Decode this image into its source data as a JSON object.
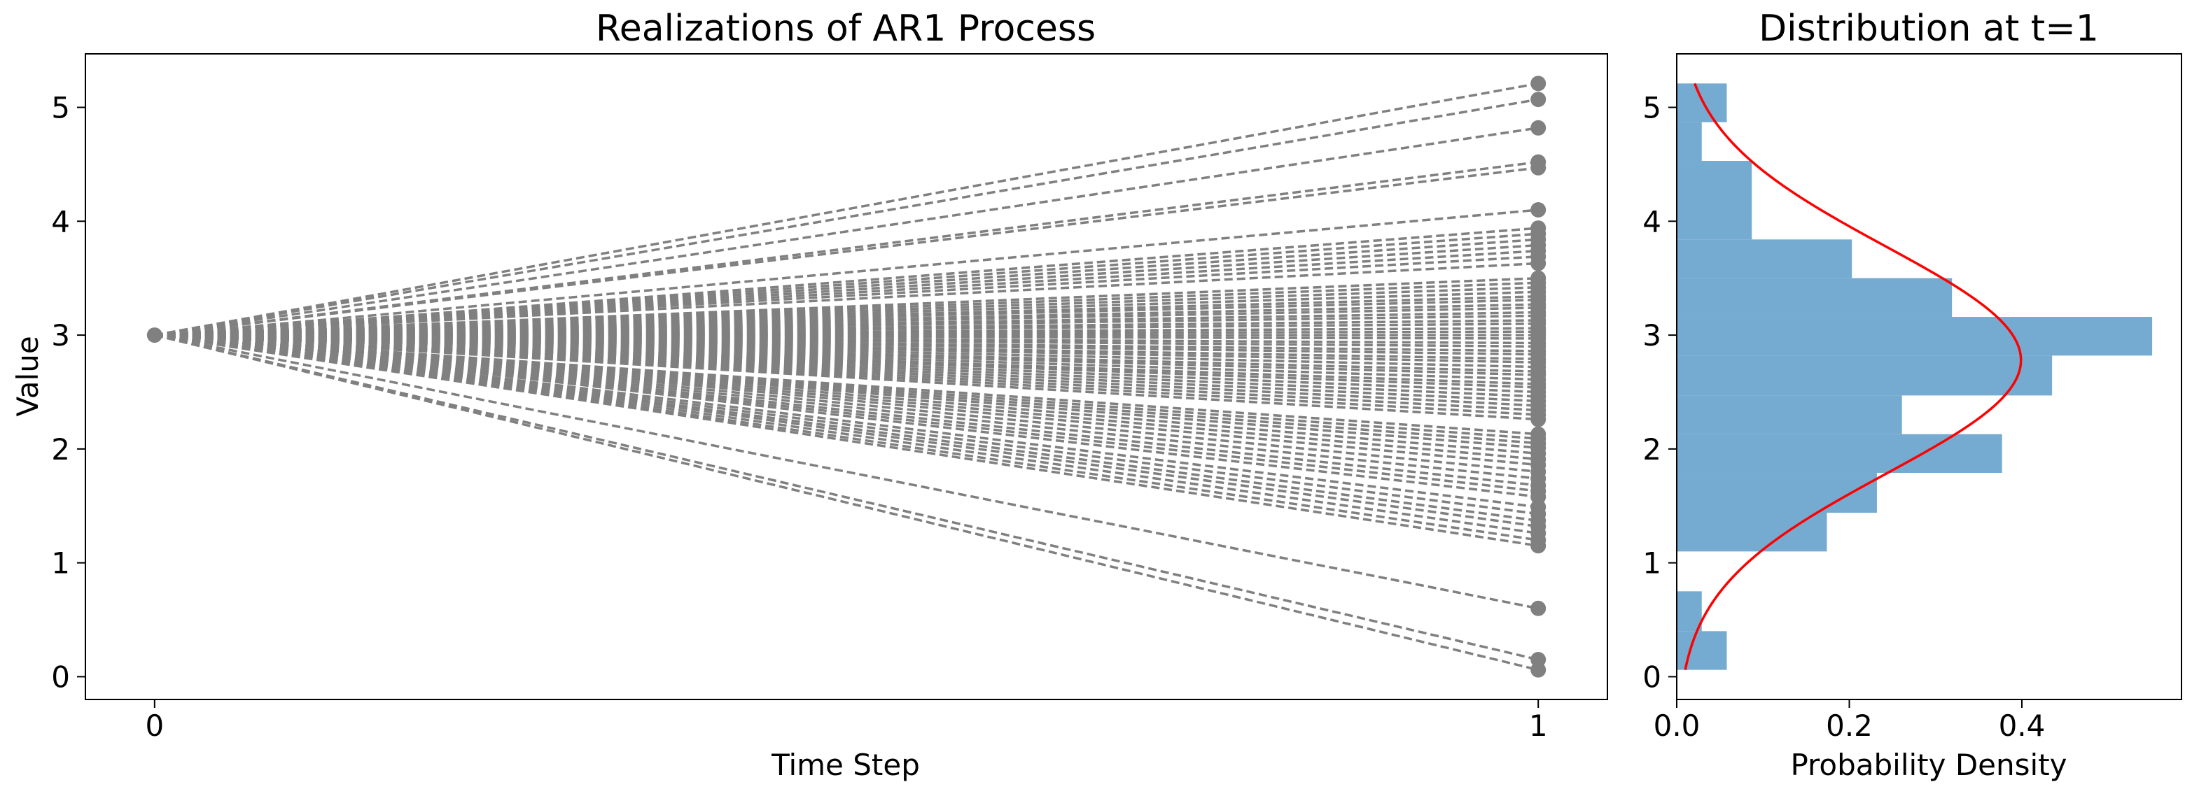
{
  "chart_data": [
    {
      "type": "line",
      "title": "Realizations of AR1 Process",
      "xlabel": "Time Step",
      "ylabel": "Value",
      "xlim": [
        -0.05,
        1.05
      ],
      "ylim": [
        -0.2,
        5.47
      ],
      "x_ticks": [
        0,
        1
      ],
      "y_ticks": [
        0,
        1,
        2,
        3,
        4,
        5
      ],
      "grid": false,
      "line_style": "dashed",
      "line_color": "#808080",
      "marker": "circle",
      "x": [
        0,
        1
      ],
      "start_value": 3.0,
      "end_values": [
        5.21,
        5.07,
        4.82,
        4.52,
        4.47,
        4.1,
        3.94,
        3.89,
        3.84,
        3.79,
        3.74,
        3.69,
        3.63,
        3.5,
        3.46,
        3.42,
        3.38,
        3.34,
        3.31,
        3.27,
        3.24,
        3.2,
        3.17,
        3.13,
        3.1,
        3.06,
        3.03,
        3.0,
        2.97,
        2.93,
        2.9,
        2.86,
        2.83,
        2.79,
        2.76,
        2.72,
        2.68,
        2.65,
        2.61,
        2.57,
        2.54,
        2.5,
        2.46,
        2.42,
        2.38,
        2.34,
        2.3,
        2.26,
        2.13,
        2.09,
        2.05,
        2.01,
        1.96,
        1.91,
        1.86,
        1.8,
        1.74,
        1.68,
        1.63,
        1.58,
        1.49,
        1.43,
        1.37,
        1.32,
        1.26,
        1.2,
        1.15,
        0.6,
        0.15,
        0.06
      ]
    },
    {
      "type": "bar",
      "orientation": "horizontal",
      "title": "Distribution at t=1",
      "xlabel": "Probability Density",
      "ylabel": "",
      "xlim": [
        0,
        0.585
      ],
      "ylim": [
        -0.2,
        5.47
      ],
      "x_ticks": [
        0.0,
        0.2,
        0.4
      ],
      "y_ticks": [
        0,
        1,
        2,
        3,
        4,
        5
      ],
      "bar_color": "#75abd1",
      "bins": [
        {
          "from": 0.06,
          "to": 0.4,
          "density": 0.058
        },
        {
          "from": 0.4,
          "to": 0.75,
          "density": 0.029
        },
        {
          "from": 0.75,
          "to": 1.1,
          "density": 0.0
        },
        {
          "from": 1.1,
          "to": 1.44,
          "density": 0.174
        },
        {
          "from": 1.44,
          "to": 1.79,
          "density": 0.232
        },
        {
          "from": 1.79,
          "to": 2.13,
          "density": 0.377
        },
        {
          "from": 2.13,
          "to": 2.47,
          "density": 0.261
        },
        {
          "from": 2.47,
          "to": 2.82,
          "density": 0.435
        },
        {
          "from": 2.82,
          "to": 3.16,
          "density": 0.551
        },
        {
          "from": 3.16,
          "to": 3.5,
          "density": 0.319
        },
        {
          "from": 3.5,
          "to": 3.84,
          "density": 0.203
        },
        {
          "from": 3.84,
          "to": 4.18,
          "density": 0.087
        },
        {
          "from": 4.18,
          "to": 4.53,
          "density": 0.087
        },
        {
          "from": 4.53,
          "to": 4.87,
          "density": 0.029
        },
        {
          "from": 4.87,
          "to": 5.21,
          "density": 0.058
        }
      ],
      "curve": {
        "type": "normal-pdf",
        "color": "#ff0000",
        "mean": 2.78,
        "std": 1.0,
        "y_range": [
          0.06,
          5.21
        ]
      }
    }
  ]
}
